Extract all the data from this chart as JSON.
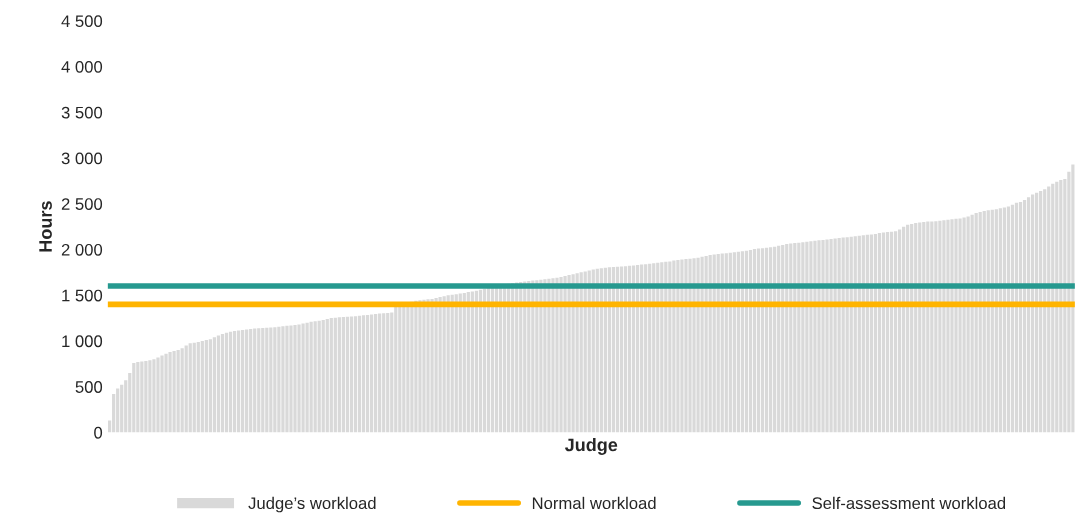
{
  "chart_data": {
    "type": "bar",
    "xlabel": "Judge",
    "ylabel": "Hours",
    "categories": [
      null,
      null,
      null,
      null,
      null,
      null,
      null,
      null,
      null,
      null,
      null,
      null,
      null,
      null,
      null,
      null,
      null,
      null,
      null,
      null,
      null,
      null,
      null,
      null,
      null,
      null,
      null,
      null,
      null,
      null,
      null,
      null,
      null,
      null,
      null,
      null,
      null,
      null,
      null,
      null,
      null,
      null,
      null,
      null,
      null,
      null,
      null,
      null,
      null,
      null,
      null,
      null,
      null,
      null,
      null,
      null,
      null,
      null,
      null,
      null,
      null,
      null,
      null,
      null,
      null,
      null,
      null,
      null,
      null,
      null,
      null,
      null,
      null,
      null,
      null,
      null,
      null,
      null,
      null,
      null,
      null,
      null,
      null,
      null,
      null,
      null,
      null,
      null,
      null,
      null,
      null,
      null,
      null,
      null,
      null,
      null,
      null,
      null,
      null,
      null,
      null,
      null,
      null,
      null,
      null,
      null,
      null,
      null,
      null,
      null,
      null,
      null,
      null,
      null,
      null,
      null,
      null,
      null,
      null,
      null,
      null,
      null,
      null,
      null,
      null,
      null,
      null,
      null,
      null,
      null,
      null,
      null,
      null,
      null,
      null,
      null,
      null,
      null,
      null,
      null,
      null,
      null,
      null,
      null,
      null,
      null,
      null,
      null,
      null,
      null,
      null,
      null,
      null,
      null,
      null,
      null,
      null,
      null,
      null,
      null,
      null,
      null,
      null,
      null,
      null,
      null,
      null,
      null,
      null,
      null,
      null,
      null,
      null,
      null,
      null,
      null,
      null,
      null,
      null,
      null,
      null,
      null,
      null,
      null,
      null,
      null,
      null,
      null,
      null,
      null,
      null,
      null,
      null,
      null,
      null,
      null,
      null,
      null,
      null,
      null,
      null,
      null,
      null,
      null,
      null,
      null,
      null,
      null,
      null,
      null,
      null,
      null,
      null,
      null,
      null,
      null,
      null,
      null,
      null,
      null,
      null,
      null,
      null,
      null,
      null,
      null,
      null,
      null,
      null,
      null,
      null,
      null,
      null,
      null,
      null,
      null,
      null,
      null,
      null,
      null
    ],
    "series": [
      {
        "name": "Judge’s workload",
        "color": "#d9d9d9",
        "values": [
          130,
          420,
          480,
          520,
          570,
          650,
          760,
          770,
          775,
          780,
          790,
          800,
          820,
          840,
          860,
          880,
          890,
          900,
          920,
          950,
          975,
          980,
          990,
          1000,
          1010,
          1020,
          1040,
          1060,
          1075,
          1090,
          1100,
          1110,
          1115,
          1120,
          1125,
          1130,
          1135,
          1140,
          1142,
          1145,
          1148,
          1150,
          1155,
          1160,
          1165,
          1170,
          1175,
          1180,
          1190,
          1200,
          1210,
          1215,
          1220,
          1230,
          1240,
          1250,
          1255,
          1260,
          1262,
          1265,
          1268,
          1270,
          1275,
          1280,
          1285,
          1290,
          1295,
          1300,
          1302,
          1305,
          1310,
          1390,
          1400,
          1410,
          1420,
          1430,
          1440,
          1445,
          1450,
          1455,
          1460,
          1470,
          1480,
          1490,
          1500,
          1505,
          1510,
          1520,
          1525,
          1535,
          1540,
          1550,
          1560,
          1570,
          1580,
          1590,
          1600,
          1610,
          1620,
          1625,
          1630,
          1640,
          1645,
          1650,
          1655,
          1660,
          1665,
          1670,
          1675,
          1680,
          1685,
          1690,
          1700,
          1710,
          1720,
          1730,
          1740,
          1750,
          1760,
          1770,
          1780,
          1790,
          1795,
          1800,
          1805,
          1810,
          1812,
          1815,
          1818,
          1822,
          1826,
          1830,
          1835,
          1840,
          1845,
          1850,
          1855,
          1860,
          1865,
          1870,
          1880,
          1885,
          1890,
          1895,
          1900,
          1905,
          1910,
          1920,
          1930,
          1940,
          1945,
          1950,
          1955,
          1960,
          1965,
          1970,
          1975,
          1980,
          1985,
          1995,
          2005,
          2010,
          2015,
          2020,
          2025,
          2030,
          2040,
          2050,
          2060,
          2065,
          2070,
          2075,
          2080,
          2085,
          2090,
          2095,
          2100,
          2105,
          2110,
          2115,
          2120,
          2125,
          2130,
          2135,
          2140,
          2145,
          2150,
          2155,
          2160,
          2165,
          2170,
          2180,
          2185,
          2190,
          2195,
          2200,
          2220,
          2250,
          2270,
          2280,
          2290,
          2295,
          2300,
          2305,
          2305,
          2310,
          2315,
          2320,
          2325,
          2330,
          2335,
          2340,
          2350,
          2360,
          2380,
          2400,
          2410,
          2420,
          2430,
          2435,
          2440,
          2450,
          2460,
          2470,
          2490,
          2510,
          2520,
          2540,
          2570,
          2600,
          2620,
          2640,
          2660,
          2690,
          2720,
          2740,
          2760,
          2770,
          2850,
          2930
        ]
      }
    ],
    "ref_lines": [
      {
        "axis": "y",
        "value": 1400,
        "label": "Normal workload",
        "color": "#ffb400",
        "line_style": "solid"
      },
      {
        "axis": "y",
        "value": 1600,
        "label": "Self-assessment workload",
        "color": "#26998f",
        "line_style": "solid"
      }
    ],
    "ylim": [
      0,
      4500
    ],
    "yticks": [
      0,
      500,
      {
        "value": 1000,
        "label": "1 000"
      },
      {
        "value": 1500,
        "label": "1 500"
      },
      {
        "value": 2000,
        "label": "2 000"
      },
      {
        "value": 2500,
        "label": "2 500"
      },
      {
        "value": 3000,
        "label": "3 000"
      },
      {
        "value": 3500,
        "label": "3 500"
      },
      {
        "value": 4000,
        "label": "4 000"
      },
      {
        "value": 4500,
        "label": "4 500"
      }
    ],
    "tick_labels": "y",
    "grid": false,
    "legend": "bottom"
  }
}
